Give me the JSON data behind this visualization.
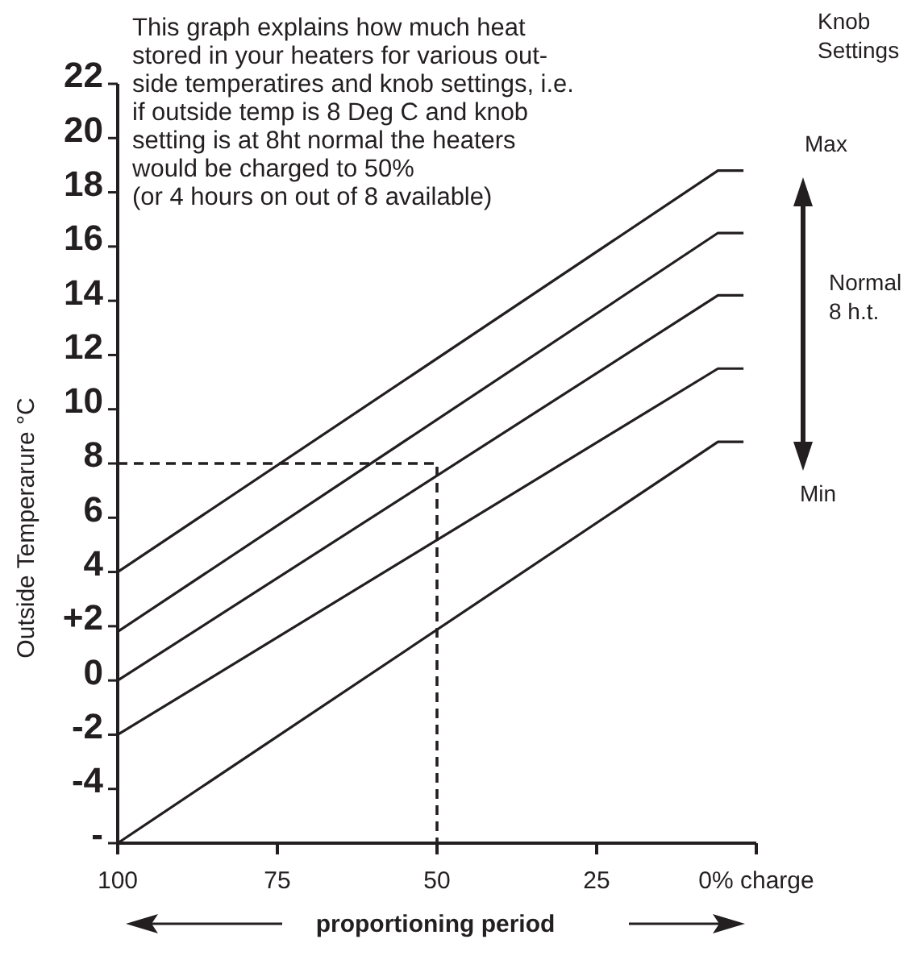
{
  "chart_data": {
    "type": "line",
    "ylabel": "Outside Temperarure °C",
    "xlabel": "proportioning period",
    "xlim": [
      100,
      0
    ],
    "xticks": [
      100,
      75,
      50,
      25,
      {
        "value": 0,
        "label": "0% charge"
      }
    ],
    "ylim": [
      -6,
      22
    ],
    "yticks": [
      22,
      20,
      18,
      16,
      14,
      12,
      10,
      8,
      6,
      4,
      {
        "value": 2,
        "label": "+2"
      },
      0,
      -2,
      -4,
      {
        "value": -6,
        "label": "-"
      }
    ],
    "series": [
      {
        "color": "#231f20",
        "x": [
          100,
          6,
          2
        ],
        "values": [
          4,
          18.8,
          18.8
        ]
      },
      {
        "color": "#231f20",
        "x": [
          100,
          6,
          2
        ],
        "values": [
          1.8,
          16.5,
          16.5
        ]
      },
      {
        "color": "#231f20",
        "x": [
          100,
          6,
          2
        ],
        "values": [
          0,
          14.2,
          14.2
        ]
      },
      {
        "color": "#231f20",
        "x": [
          100,
          6,
          2
        ],
        "values": [
          -2,
          11.5,
          11.5
        ]
      },
      {
        "color": "#231f20",
        "x": [
          100,
          6,
          2
        ],
        "values": [
          -6,
          8.8,
          8.8
        ]
      },
      {
        "color": "#231f20",
        "x": [
          100,
          50,
          50
        ],
        "values": [
          8,
          8,
          -6
        ],
        "line_style": "dashed"
      }
    ],
    "grid": false,
    "marker": "none",
    "line_style": "solid",
    "annotations": [
      "This graph explains how much heat\nstored in your heaters for various out-\nside temperatires and knob settings, i.e.\nif outside temp is 8 Deg C and knob\nsetting is at 8ht normal the heaters\nwould be charged to 50%\n(or 4 hours on out of 8 available)",
      "Knob\nSettings",
      "Max",
      "Normal\n8 h.t.",
      "Min"
    ]
  }
}
